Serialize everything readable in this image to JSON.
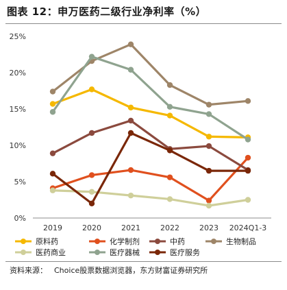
{
  "title": "图表 12：申万医药二级行业净利率（%）",
  "source": {
    "label": "资料来源：",
    "text": "Choice股票数据浏览器，东方财富证券研究所"
  },
  "chart_data": {
    "type": "line",
    "categories": [
      "2019",
      "2020",
      "2021",
      "2022",
      "2023",
      "2024Q1-3"
    ],
    "ylim": [
      0,
      25
    ],
    "yticks": [
      "0%",
      "5%",
      "10%",
      "15%",
      "20%",
      "25%"
    ],
    "grid": false,
    "legend_position": "bottom",
    "series": [
      {
        "name": "原料药",
        "color": "#f5b800",
        "values": [
          15.7,
          17.7,
          15.2,
          14.1,
          11.2,
          11.1
        ]
      },
      {
        "name": "化学制剂",
        "color": "#e0501e",
        "values": [
          4.1,
          5.9,
          6.6,
          5.6,
          2.4,
          8.3
        ]
      },
      {
        "name": "中药",
        "color": "#8b4a3e",
        "values": [
          8.9,
          11.7,
          13.4,
          9.5,
          9.9,
          6.6
        ]
      },
      {
        "name": "生物制品",
        "color": "#9e8568",
        "values": [
          17.4,
          21.6,
          23.9,
          18.3,
          15.6,
          16.1
        ]
      },
      {
        "name": "医药商业",
        "color": "#cfcf9a",
        "values": [
          3.8,
          3.6,
          3.1,
          2.6,
          1.7,
          2.5
        ]
      },
      {
        "name": "医疗器械",
        "color": "#8fa38f",
        "values": [
          14.6,
          22.2,
          20.4,
          15.3,
          14.3,
          10.8
        ]
      },
      {
        "name": "医疗服务",
        "color": "#7a2708",
        "values": [
          6.1,
          2.0,
          11.7,
          9.3,
          6.5,
          6.5
        ]
      }
    ]
  }
}
